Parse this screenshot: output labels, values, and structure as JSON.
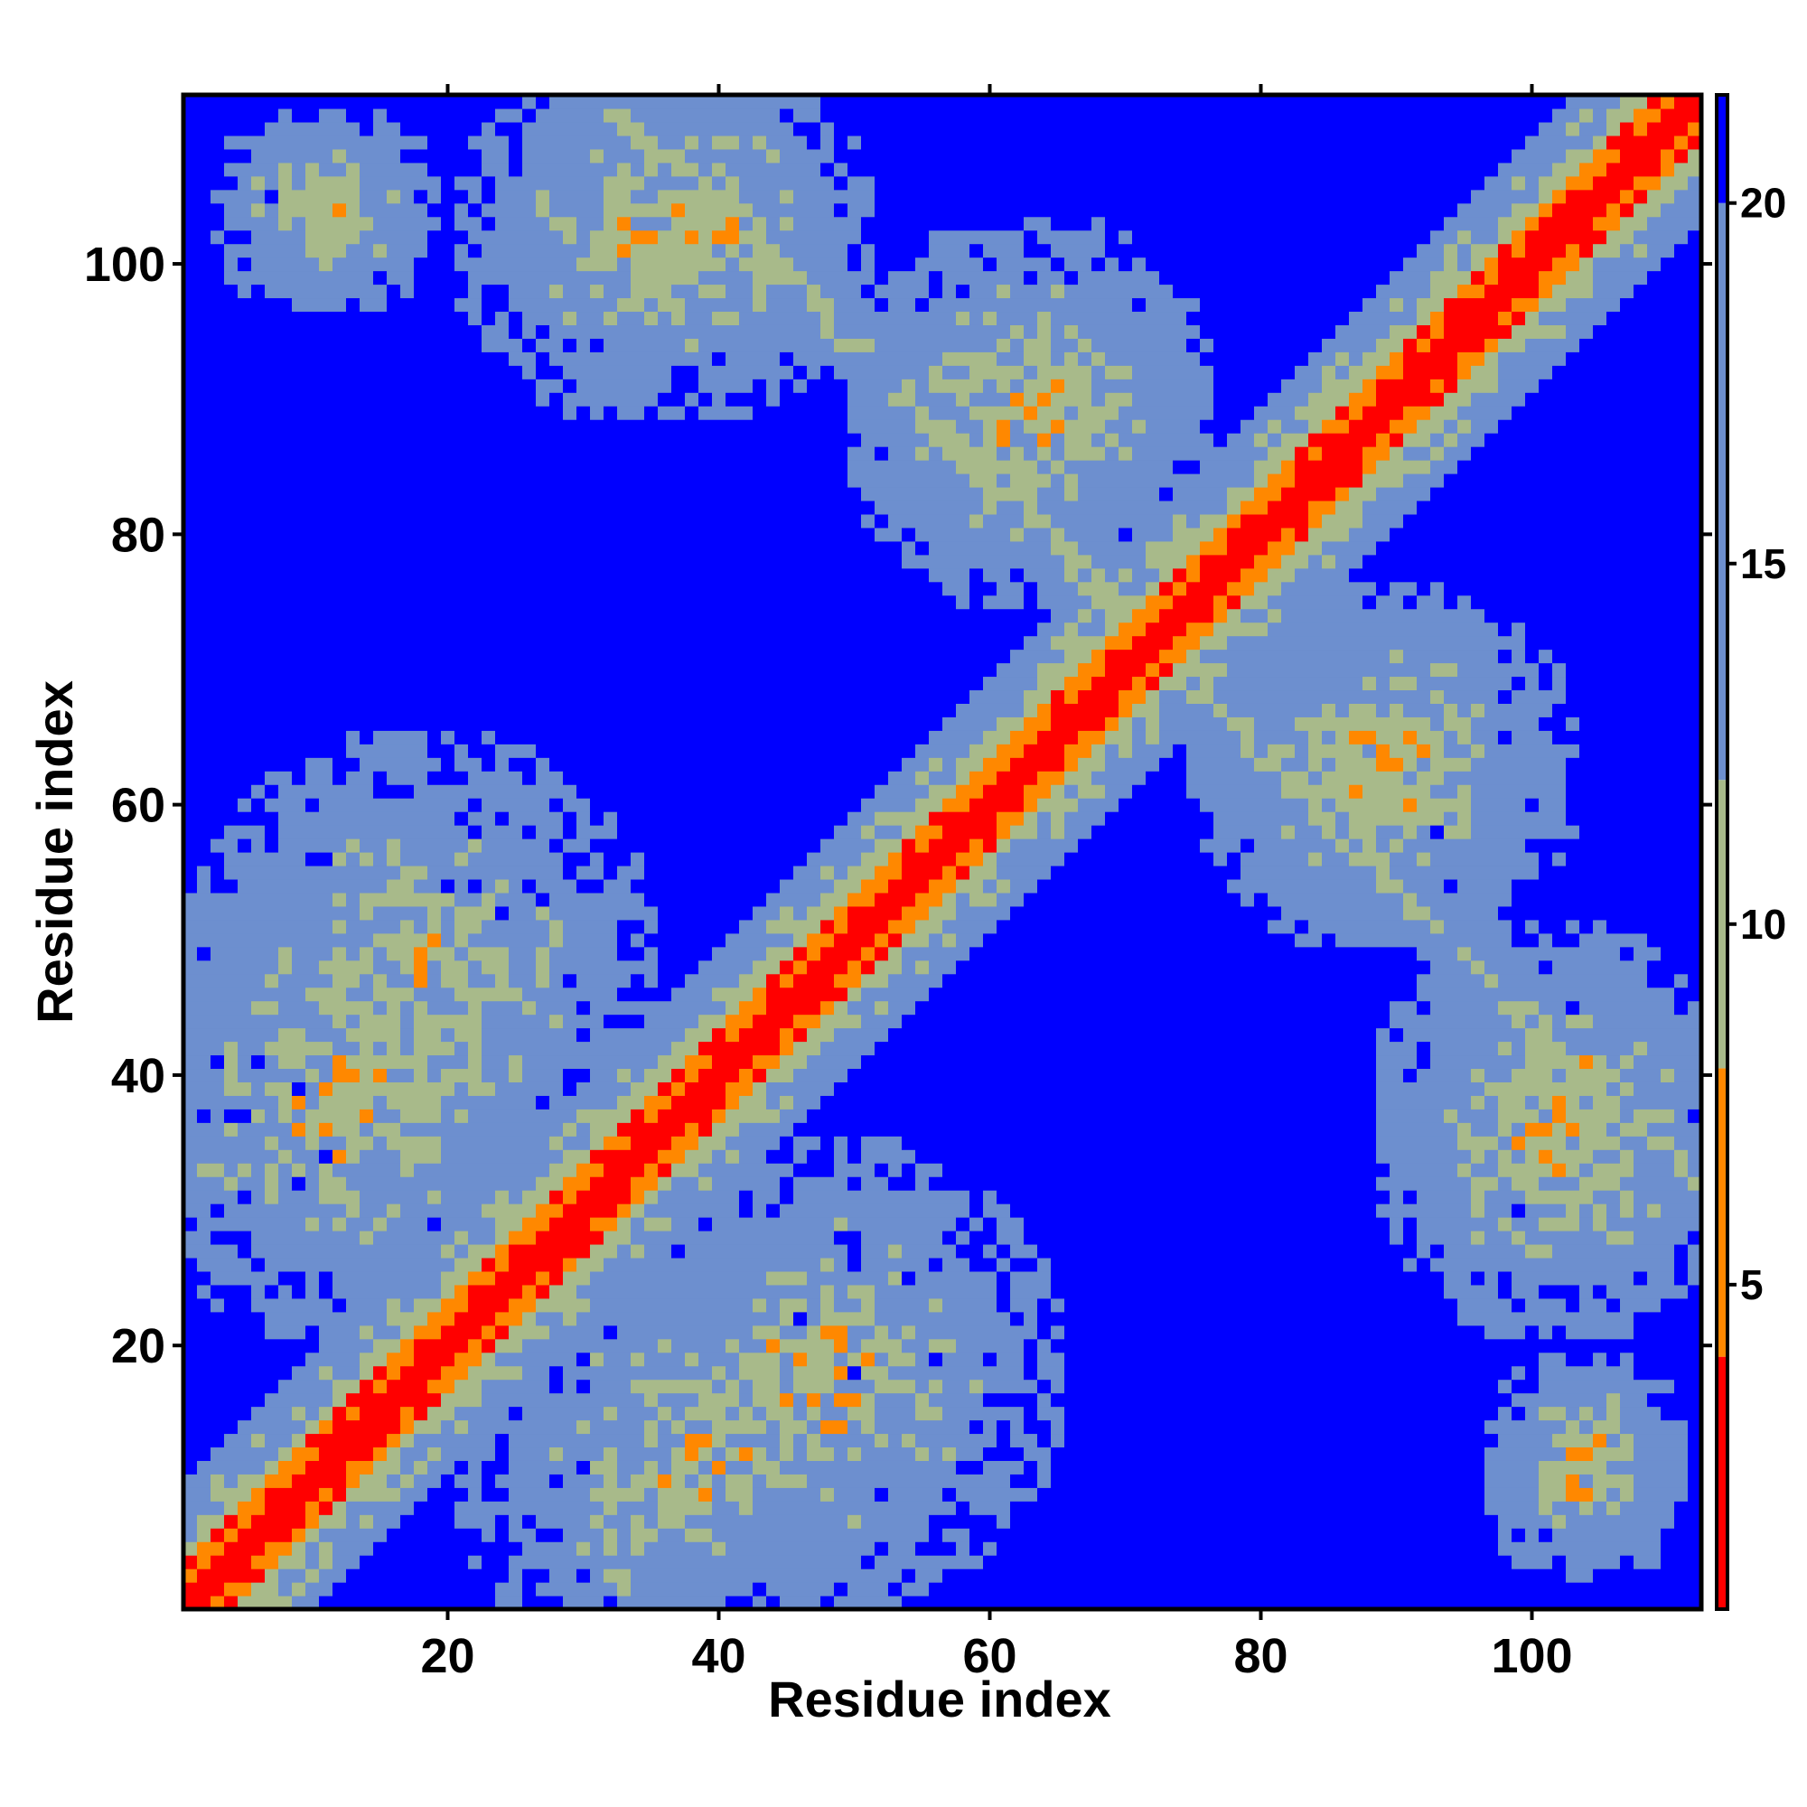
{
  "chart_data": {
    "type": "heatmap",
    "title": "",
    "xlabel": "Residue index",
    "ylabel": "Residue index",
    "n_residues": 112,
    "xlim": [
      1,
      112
    ],
    "ylim": [
      1,
      112
    ],
    "x_ticks": [
      20,
      40,
      60,
      80,
      100
    ],
    "y_ticks": [
      20,
      40,
      60,
      80,
      100
    ],
    "x_tick_labels": [
      "20",
      "40",
      "60",
      "80",
      "100"
    ],
    "y_tick_labels": [
      "20",
      "40",
      "60",
      "80",
      "100"
    ],
    "colorbar": {
      "position": "right",
      "range": [
        0.5,
        21.5
      ],
      "ticks": [
        5,
        10,
        15,
        20
      ],
      "tick_labels": [
        "5",
        "10",
        "15",
        "20"
      ],
      "colors": [
        {
          "max": 4,
          "color": "#ff0000"
        },
        {
          "max": 8,
          "color": "#ff8800"
        },
        {
          "max": 12,
          "color": "#a8ba8a"
        },
        {
          "max": 20,
          "color": "#6d8fcf"
        },
        {
          "max": 21.5,
          "color": "#0000ff"
        }
      ]
    },
    "distance_matrix_note_free": true,
    "contact_regions": [
      {
        "x_center": 12,
        "y_center": 38,
        "radius": 18,
        "description_free": true
      },
      {
        "x_center": 48,
        "y_center": 18,
        "radius": 18
      },
      {
        "x_center": 38,
        "y_center": 102,
        "radius": 14
      },
      {
        "x_center": 63,
        "y_center": 88,
        "radius": 14
      },
      {
        "x_center": 90,
        "y_center": 63,
        "radius": 14
      },
      {
        "x_center": 102,
        "y_center": 34,
        "radius": 14
      },
      {
        "x_center": 12,
        "y_center": 104,
        "radius": 8
      },
      {
        "x_center": 104,
        "y_center": 10,
        "radius": 8
      }
    ],
    "cross_diagonal": {
      "from": [
        72,
        72
      ],
      "to": [
        112,
        32
      ],
      "also_from": [
        72,
        72
      ],
      "also_to": [
        32,
        112
      ]
    }
  }
}
